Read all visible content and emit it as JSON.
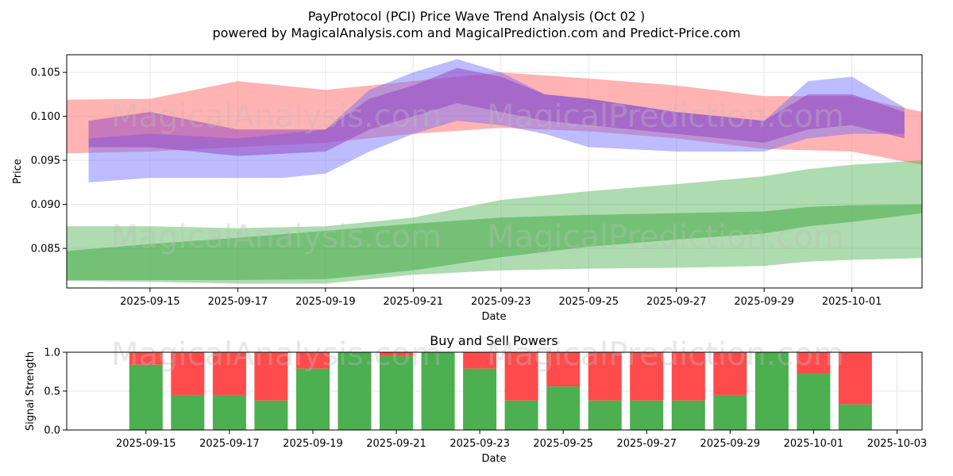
{
  "title_line1": "PayProtocol (PCI) Price Wave Trend Analysis (Oct 02 )",
  "title_line2": "powered by MagicalAnalysis.com and MagicalPrediction.com and Predict-Price.com",
  "watermark_left": "MagicalAnalysis.com",
  "watermark_right": "MagicalPrediction.com",
  "colors": {
    "red_band": "#ff8080",
    "blue_band": "#6a6aff",
    "purple_band": "#9040c0",
    "green_band": "#4caf50",
    "buy": "#4caf50",
    "sell": "#ff4b4b",
    "grid": "#e6e6e6"
  },
  "chart_data": [
    {
      "type": "area",
      "title": "PayProtocol (PCI) Price Wave Trend Analysis (Oct 02 )",
      "xlabel": "Date",
      "ylabel": "Price",
      "x_range_days": [
        -0.9,
        18.6
      ],
      "x_origin": "2025-09-14",
      "ylim": [
        0.0805,
        0.107
      ],
      "yticks": [
        "0.085",
        "0.090",
        "0.095",
        "0.100",
        "0.105"
      ],
      "ytick_values": [
        0.085,
        0.09,
        0.095,
        0.1,
        0.105
      ],
      "xticks": [
        "2025-09-15",
        "2025-09-17",
        "2025-09-19",
        "2025-09-21",
        "2025-09-23",
        "2025-09-25",
        "2025-09-27",
        "2025-09-29",
        "2025-10-01"
      ],
      "xtick_days": [
        1,
        3,
        5,
        7,
        9,
        11,
        13,
        15,
        17
      ],
      "grid": true,
      "series": [
        {
          "name": "red-band",
          "x": [
            -0.9,
            1,
            3,
            5,
            7,
            9,
            11,
            13,
            15,
            17,
            18.6
          ],
          "upper": [
            0.1019,
            0.102,
            0.104,
            0.103,
            0.104,
            0.105,
            0.1043,
            0.1035,
            0.1023,
            0.1023,
            0.1005
          ],
          "lower": [
            0.0958,
            0.096,
            0.0965,
            0.097,
            0.098,
            0.0987,
            0.0983,
            0.0975,
            0.0963,
            0.096,
            0.0945
          ]
        },
        {
          "name": "blue-band",
          "x": [
            -0.4,
            1,
            3,
            4,
            5,
            6,
            7,
            8,
            9,
            10,
            11,
            13,
            15,
            16,
            17,
            18.2
          ],
          "upper": [
            0.0975,
            0.098,
            0.0975,
            0.098,
            0.0985,
            0.103,
            0.105,
            0.1065,
            0.105,
            0.1025,
            0.102,
            0.1005,
            0.0995,
            0.104,
            0.1045,
            0.101
          ],
          "lower": [
            0.0925,
            0.093,
            0.093,
            0.093,
            0.0935,
            0.096,
            0.098,
            0.0995,
            0.099,
            0.098,
            0.0965,
            0.096,
            0.096,
            0.0975,
            0.098,
            0.098
          ]
        },
        {
          "name": "purple-band",
          "x": [
            -0.4,
            1,
            3,
            5,
            6,
            7,
            8,
            9,
            10,
            11,
            13,
            15,
            16,
            17,
            18.2
          ],
          "upper": [
            0.0995,
            0.1005,
            0.0985,
            0.0985,
            0.102,
            0.1035,
            0.1055,
            0.1045,
            0.1025,
            0.102,
            0.1005,
            0.0995,
            0.1025,
            0.1025,
            0.1005
          ],
          "lower": [
            0.0965,
            0.0965,
            0.0955,
            0.096,
            0.0985,
            0.1,
            0.1015,
            0.1005,
            0.0995,
            0.099,
            0.098,
            0.097,
            0.0985,
            0.099,
            0.0975
          ]
        },
        {
          "name": "green-band-outer",
          "x": [
            -0.9,
            1,
            3,
            5,
            7,
            9,
            11,
            13,
            15,
            16,
            17,
            18.6
          ],
          "upper": [
            0.0875,
            0.0875,
            0.0873,
            0.0875,
            0.0885,
            0.0905,
            0.0915,
            0.0923,
            0.0932,
            0.094,
            0.0945,
            0.095
          ],
          "lower": [
            0.0813,
            0.0812,
            0.081,
            0.081,
            0.082,
            0.0825,
            0.0827,
            0.0828,
            0.083,
            0.0835,
            0.0837,
            0.0839
          ]
        },
        {
          "name": "green-band-inner",
          "x": [
            -0.9,
            1,
            3,
            5,
            7,
            9,
            11,
            13,
            15,
            16,
            17,
            18.6
          ],
          "upper": [
            0.0847,
            0.0855,
            0.0862,
            0.087,
            0.0878,
            0.0885,
            0.0888,
            0.089,
            0.0892,
            0.0897,
            0.0899,
            0.09
          ],
          "lower": [
            0.0814,
            0.0814,
            0.0814,
            0.0815,
            0.0825,
            0.084,
            0.0852,
            0.086,
            0.0867,
            0.0875,
            0.088,
            0.089
          ]
        }
      ]
    },
    {
      "type": "bar",
      "title": "Buy and Sell Powers",
      "xlabel": "Date",
      "ylabel": "Signal Strength",
      "ylim": [
        0,
        1
      ],
      "yticks": [
        "0.0",
        "0.5",
        "1.0"
      ],
      "ytick_values": [
        0,
        0.5,
        1
      ],
      "x_range_days": [
        -1.9,
        18.6
      ],
      "xticks": [
        "2025-09-15",
        "2025-09-17",
        "2025-09-19",
        "2025-09-21",
        "2025-09-23",
        "2025-09-25",
        "2025-09-27",
        "2025-09-29",
        "2025-10-01",
        "2025-10-03"
      ],
      "xtick_days": [
        0,
        2,
        4,
        6,
        8,
        10,
        12,
        14,
        16,
        18
      ],
      "categories": [
        "2025-09-15",
        "2025-09-16",
        "2025-09-17",
        "2025-09-18",
        "2025-09-19",
        "2025-09-20",
        "2025-09-21",
        "2025-09-22",
        "2025-09-23",
        "2025-09-24",
        "2025-09-25",
        "2025-09-26",
        "2025-09-27",
        "2025-09-28",
        "2025-09-29",
        "2025-09-30",
        "2025-10-01",
        "2025-10-02"
      ],
      "series": [
        {
          "name": "Buy",
          "values": [
            0.84,
            0.45,
            0.45,
            0.38,
            0.79,
            1.0,
            0.95,
            1.0,
            0.79,
            0.38,
            0.56,
            0.38,
            0.38,
            0.38,
            0.45,
            1.0,
            0.73,
            0.33
          ]
        },
        {
          "name": "Sell",
          "values": [
            0.16,
            0.55,
            0.55,
            0.62,
            0.21,
            0.0,
            0.05,
            0.0,
            0.21,
            0.62,
            0.44,
            0.62,
            0.62,
            0.62,
            0.55,
            0.0,
            0.27,
            0.67
          ]
        }
      ],
      "grid": true
    }
  ]
}
